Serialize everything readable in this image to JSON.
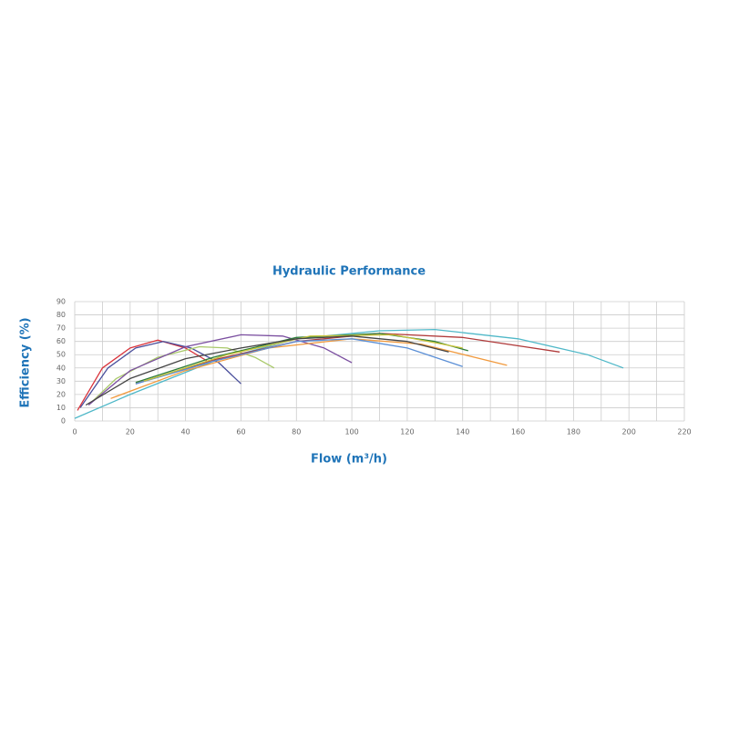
{
  "chart_data": {
    "type": "line",
    "title": "Hydraulic Performance",
    "x_label": "Flow (m³/h)",
    "y_label": "Efficiency (%)",
    "xlim": [
      0,
      220
    ],
    "xticks": [
      0,
      20,
      40,
      60,
      80,
      100,
      120,
      140,
      160,
      180,
      200,
      220
    ],
    "x_minor_grid": [
      10,
      30,
      50,
      70,
      90,
      110,
      130,
      150,
      170,
      190,
      210
    ],
    "ylim": [
      0,
      90
    ],
    "yticks": [
      0,
      10,
      20,
      30,
      40,
      50,
      60,
      70,
      80,
      90
    ],
    "grid": true,
    "series": [
      {
        "color": "#d9323a",
        "x": [
          1,
          10,
          20,
          30,
          40,
          48
        ],
        "values": [
          8,
          40,
          55,
          61,
          55,
          45
        ]
      },
      {
        "color": "#4a4f9c",
        "x": [
          2,
          12,
          22,
          32,
          42,
          52,
          60
        ],
        "values": [
          10,
          40,
          55,
          60,
          55,
          44,
          28
        ]
      },
      {
        "color": "#a9c96a",
        "x": [
          5,
          15,
          30,
          45,
          55,
          65,
          72
        ],
        "values": [
          12,
          32,
          48,
          56,
          55,
          48,
          40
        ]
      },
      {
        "color": "#7b4fa0",
        "x": [
          5,
          20,
          40,
          60,
          75,
          90,
          100
        ],
        "values": [
          12,
          38,
          56,
          65,
          64,
          55,
          44
        ]
      },
      {
        "color": "#4fb8c8",
        "x": [
          0,
          20,
          50,
          80,
          110,
          130,
          160,
          185,
          198
        ],
        "values": [
          2,
          20,
          45,
          62,
          68,
          69,
          62,
          50,
          40
        ]
      },
      {
        "color": "#b03a3a",
        "x": [
          22,
          50,
          80,
          110,
          140,
          175
        ],
        "values": [
          28,
          46,
          60,
          66,
          63,
          52
        ]
      },
      {
        "color": "#f19a3e",
        "x": [
          13,
          40,
          70,
          100,
          125,
          156
        ],
        "values": [
          17,
          38,
          55,
          62,
          58,
          42
        ]
      },
      {
        "color": "#5b8fd6",
        "x": [
          22,
          50,
          80,
          100,
          120,
          140
        ],
        "values": [
          28,
          45,
          60,
          62,
          55,
          41
        ]
      },
      {
        "color": "#2e7d3a",
        "x": [
          22,
          50,
          80,
          110,
          130,
          142
        ],
        "values": [
          29,
          48,
          63,
          66,
          60,
          53
        ]
      },
      {
        "color": "#c8c23a",
        "x": [
          25,
          55,
          85,
          115,
          140
        ],
        "values": [
          30,
          50,
          64,
          65,
          55
        ]
      },
      {
        "color": "#444444",
        "x": [
          4,
          20,
          40,
          60,
          80,
          100,
          120,
          135
        ],
        "values": [
          12,
          32,
          47,
          55,
          62,
          64,
          60,
          52
        ]
      }
    ]
  }
}
